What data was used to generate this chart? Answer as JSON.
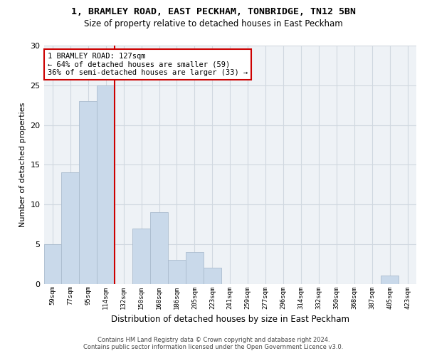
{
  "title": "1, BRAMLEY ROAD, EAST PECKHAM, TONBRIDGE, TN12 5BN",
  "subtitle": "Size of property relative to detached houses in East Peckham",
  "xlabel": "Distribution of detached houses by size in East Peckham",
  "ylabel": "Number of detached properties",
  "categories": [
    "59sqm",
    "77sqm",
    "95sqm",
    "114sqm",
    "132sqm",
    "150sqm",
    "168sqm",
    "186sqm",
    "205sqm",
    "223sqm",
    "241sqm",
    "259sqm",
    "277sqm",
    "296sqm",
    "314sqm",
    "332sqm",
    "350sqm",
    "368sqm",
    "387sqm",
    "405sqm",
    "423sqm"
  ],
  "values": [
    5,
    14,
    23,
    25,
    0,
    7,
    9,
    3,
    4,
    2,
    0,
    0,
    0,
    0,
    0,
    0,
    0,
    0,
    0,
    1,
    0
  ],
  "bar_color": "#c9d9ea",
  "bar_edge_color": "#aabcce",
  "vline_color": "#cc0000",
  "vline_x_index": 4,
  "annotation_text": "1 BRAMLEY ROAD: 127sqm\n← 64% of detached houses are smaller (59)\n36% of semi-detached houses are larger (33) →",
  "annotation_box_color": "#cc0000",
  "ylim": [
    0,
    30
  ],
  "yticks": [
    0,
    5,
    10,
    15,
    20,
    25,
    30
  ],
  "grid_color": "#d0d8e0",
  "bg_color": "#eef2f6",
  "footer_line1": "Contains HM Land Registry data © Crown copyright and database right 2024.",
  "footer_line2": "Contains public sector information licensed under the Open Government Licence v3.0."
}
